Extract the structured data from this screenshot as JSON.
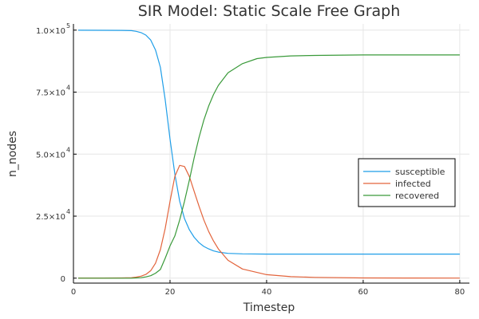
{
  "chart_data": {
    "type": "line",
    "title": "SIR Model: Static Scale Free Graph",
    "xlabel": "Timestep",
    "ylabel": "n_nodes",
    "xlim": [
      0,
      82
    ],
    "ylim": [
      -2000,
      102500
    ],
    "xticks": [
      {
        "value": 0,
        "label": "0"
      },
      {
        "value": 20,
        "label": "20"
      },
      {
        "value": 40,
        "label": "40"
      },
      {
        "value": 60,
        "label": "60"
      },
      {
        "value": 80,
        "label": "80"
      }
    ],
    "yticks": [
      {
        "value": 0,
        "mantissa": "0",
        "exp": ""
      },
      {
        "value": 25000,
        "mantissa": "2.5×10",
        "exp": "4"
      },
      {
        "value": 50000,
        "mantissa": "5.0×10",
        "exp": "4"
      },
      {
        "value": 75000,
        "mantissa": "7.5×10",
        "exp": "4"
      },
      {
        "value": 100000,
        "mantissa": "1.0×10",
        "exp": "5"
      }
    ],
    "grid": true,
    "legend_position": "right",
    "series": [
      {
        "name": "susceptible",
        "color": "#1f9ee8",
        "points": [
          [
            1,
            99950
          ],
          [
            6,
            99940
          ],
          [
            10,
            99900
          ],
          [
            12,
            99800
          ],
          [
            13,
            99500
          ],
          [
            14,
            99000
          ],
          [
            15,
            98000
          ],
          [
            16,
            96000
          ],
          [
            17,
            92000
          ],
          [
            18,
            85000
          ],
          [
            19,
            72000
          ],
          [
            20,
            56000
          ],
          [
            21,
            42000
          ],
          [
            22,
            31000
          ],
          [
            23,
            24000
          ],
          [
            24,
            19500
          ],
          [
            25,
            16500
          ],
          [
            26,
            14300
          ],
          [
            27,
            12800
          ],
          [
            28,
            11800
          ],
          [
            29,
            11000
          ],
          [
            30,
            10500
          ],
          [
            32,
            10000
          ],
          [
            35,
            9800
          ],
          [
            40,
            9700
          ],
          [
            50,
            9700
          ],
          [
            60,
            9700
          ],
          [
            70,
            9700
          ],
          [
            80,
            9700
          ]
        ]
      },
      {
        "name": "infected",
        "color": "#e3643c",
        "points": [
          [
            1,
            50
          ],
          [
            6,
            60
          ],
          [
            10,
            100
          ],
          [
            12,
            200
          ],
          [
            13,
            400
          ],
          [
            14,
            800
          ],
          [
            15,
            1500
          ],
          [
            16,
            3000
          ],
          [
            17,
            6000
          ],
          [
            18,
            11500
          ],
          [
            19,
            20000
          ],
          [
            20,
            31000
          ],
          [
            21,
            41000
          ],
          [
            22,
            45500
          ],
          [
            23,
            45000
          ],
          [
            24,
            41000
          ],
          [
            25,
            35000
          ],
          [
            26,
            29000
          ],
          [
            27,
            23500
          ],
          [
            28,
            18800
          ],
          [
            29,
            15000
          ],
          [
            30,
            11800
          ],
          [
            32,
            7200
          ],
          [
            35,
            3700
          ],
          [
            40,
            1400
          ],
          [
            45,
            600
          ],
          [
            50,
            300
          ],
          [
            60,
            100
          ],
          [
            70,
            50
          ],
          [
            80,
            30
          ]
        ]
      },
      {
        "name": "recovered",
        "color": "#3a9a3a",
        "points": [
          [
            1,
            0
          ],
          [
            10,
            0
          ],
          [
            12,
            0
          ],
          [
            13,
            100
          ],
          [
            14,
            200
          ],
          [
            15,
            500
          ],
          [
            16,
            1000
          ],
          [
            17,
            2000
          ],
          [
            18,
            3500
          ],
          [
            19,
            8000
          ],
          [
            20,
            13000
          ],
          [
            21,
            17000
          ],
          [
            22,
            23500
          ],
          [
            23,
            31000
          ],
          [
            24,
            39500
          ],
          [
            25,
            48500
          ],
          [
            26,
            56700
          ],
          [
            27,
            63700
          ],
          [
            28,
            69400
          ],
          [
            29,
            74000
          ],
          [
            30,
            77700
          ],
          [
            32,
            82800
          ],
          [
            35,
            86500
          ],
          [
            38,
            88500
          ],
          [
            40,
            89000
          ],
          [
            45,
            89600
          ],
          [
            50,
            89800
          ],
          [
            60,
            90000
          ],
          [
            70,
            90000
          ],
          [
            80,
            90000
          ]
        ]
      }
    ]
  }
}
